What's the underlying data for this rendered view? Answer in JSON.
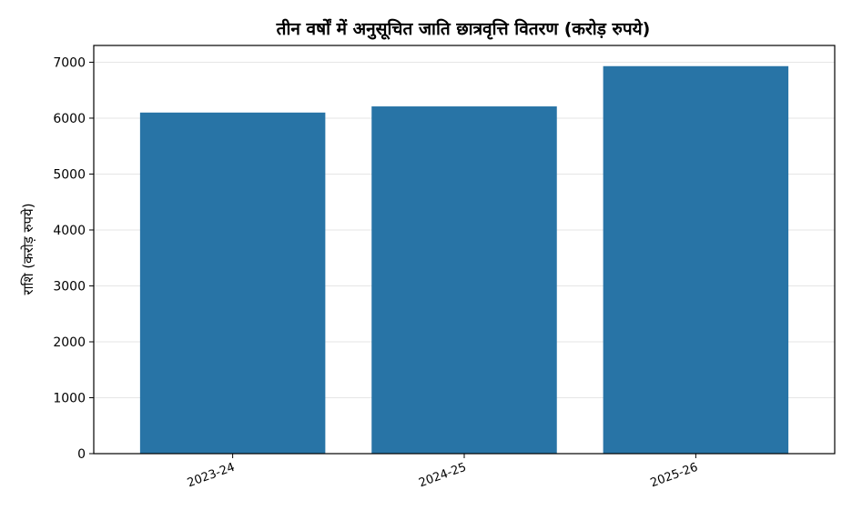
{
  "chart_data": {
    "type": "bar",
    "title": "तीन वर्षों में अनुसूचित जाति छात्रवृत्ति वितरण (करोड़ रुपये)",
    "xlabel": "",
    "ylabel": "राशि (करोड़ रुपये)",
    "categories": [
      "2023-24",
      "2024-25",
      "2025-26"
    ],
    "values": [
      6100,
      6210,
      6930
    ],
    "ylim": [
      0,
      7300
    ],
    "yticks": [
      0,
      1000,
      2000,
      3000,
      4000,
      5000,
      6000,
      7000
    ],
    "grid": true,
    "bar_color": "#2874a6"
  }
}
